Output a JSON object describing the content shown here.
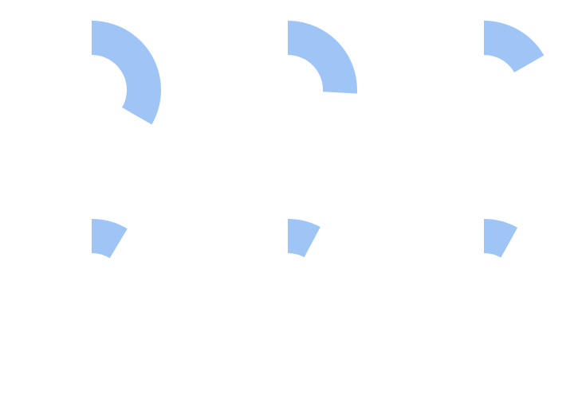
{
  "chart_data": {
    "type": "radial",
    "values": [
      120,
      93,
      60,
      31,
      28,
      29
    ],
    "color": "#9fc5f6",
    "ylim": [
      0,
      360
    ]
  }
}
